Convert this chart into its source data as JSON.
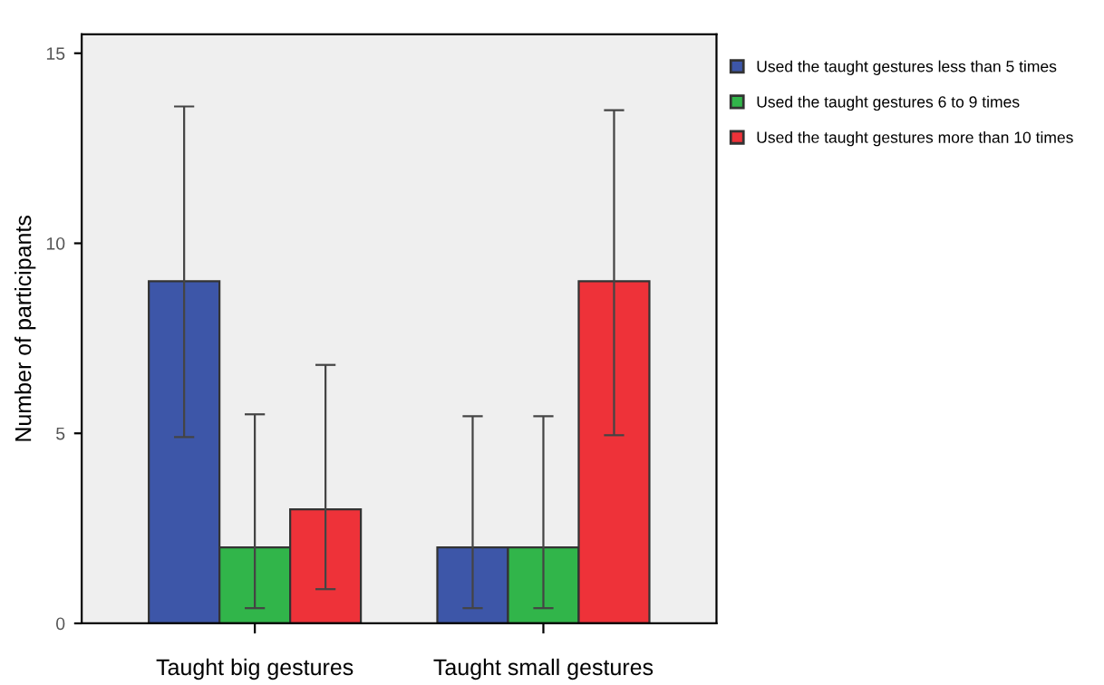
{
  "chart_data": {
    "type": "bar",
    "ylabel": "Number of participants",
    "categories": [
      "Taught big gestures",
      "Taught small gestures"
    ],
    "series": [
      {
        "name": "Used the taught gestures less than 5 times",
        "color": "#3d56a8",
        "values": [
          9,
          2
        ],
        "errors": [
          [
            4.9,
            13.6
          ],
          [
            0.4,
            5.45
          ]
        ]
      },
      {
        "name": "Used the taught gestures 6 to 9 times",
        "color": "#31b54a",
        "values": [
          2,
          2
        ],
        "errors": [
          [
            0.4,
            5.5
          ],
          [
            0.4,
            5.45
          ]
        ]
      },
      {
        "name": "Used the taught gestures more than 10 times",
        "color": "#ee3239",
        "values": [
          3,
          9
        ],
        "errors": [
          [
            0.9,
            6.8
          ],
          [
            4.95,
            13.5
          ]
        ]
      }
    ],
    "ylim": [
      0,
      15.5
    ],
    "yticks": [
      0,
      5,
      10,
      15
    ],
    "grid": false,
    "legend": "top right"
  }
}
